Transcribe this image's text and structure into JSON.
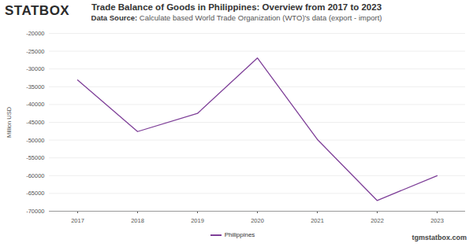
{
  "chart_data": {
    "type": "line",
    "brand": "STATBOX",
    "title": "Trade Balance of Goods in Philippines: Overview from 2017 to 2023",
    "subtitle_label": "Data Source:",
    "subtitle": "Calculate based World Trade Organization (WTO)'s data (export - import)",
    "y_label": "Million USD",
    "categories": [
      "2017",
      "2018",
      "2019",
      "2020",
      "2021",
      "2022",
      "2023"
    ],
    "series": [
      {
        "name": "Philippines",
        "color": "#7e3f98",
        "values": [
          -33100,
          -47600,
          -42500,
          -26900,
          -49800,
          -67000,
          -60000
        ]
      }
    ],
    "ylim": [
      -70000,
      -20000
    ],
    "yticks": [
      -70000,
      -65000,
      -60000,
      -55000,
      -50000,
      -45000,
      -40000,
      -35000,
      -30000,
      -25000,
      -20000
    ],
    "grid": true,
    "legend": "bottom",
    "source_note": "tgmstatbox.com"
  }
}
